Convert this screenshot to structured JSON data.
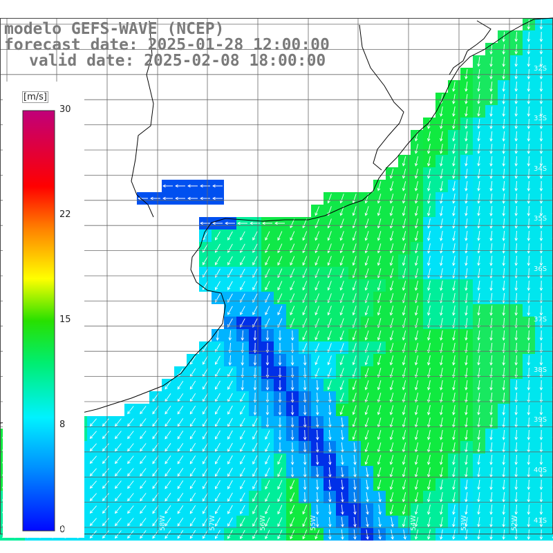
{
  "title": {
    "line1": "modelo GEFS-WAVE (NCEP)",
    "line2": "forecast date: 2025-01-28 12:00:00",
    "line3": "valid date: 2025-02-08 18:00:00"
  },
  "colorbar": {
    "unit_label": "[m/s]",
    "ticks": [
      "30",
      "22",
      "15",
      "8",
      "0"
    ],
    "tick_values": [
      30,
      22,
      15,
      8,
      0
    ],
    "range": [
      0,
      30
    ]
  },
  "lat_labels": [
    "32S",
    "33S",
    "34S",
    "35S",
    "36S",
    "37S",
    "38S",
    "39S",
    "40S",
    "41S"
  ],
  "lon_labels": [
    "59W",
    "58W",
    "57W",
    "56W",
    "55W",
    "54W",
    "53W",
    "52W"
  ],
  "colors": {
    "calm": "#0000ff",
    "light": "#00e8ff",
    "moderate": "#00ee00",
    "strong": "#ffff00",
    "max": "#c80080"
  }
}
